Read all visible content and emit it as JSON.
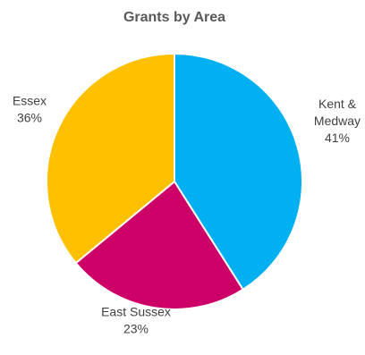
{
  "chart_data": {
    "type": "pie",
    "title": "Grants by Area",
    "start_angle_deg": 0,
    "direction": "clockwise",
    "legend": "none",
    "slices": [
      {
        "name": "Kent & Medway",
        "label_lines": [
          "Kent &",
          "Medway"
        ],
        "value": 41,
        "value_label": "41%",
        "color": "#00B0F0"
      },
      {
        "name": "East Sussex",
        "label_lines": [
          "East Sussex"
        ],
        "value": 23,
        "value_label": "23%",
        "color": "#CC0066"
      },
      {
        "name": "Essex",
        "label_lines": [
          "Essex"
        ],
        "value": 36,
        "value_label": "36%",
        "color": "#FFC000"
      }
    ],
    "slice_border_color": "#FFFFFF"
  }
}
